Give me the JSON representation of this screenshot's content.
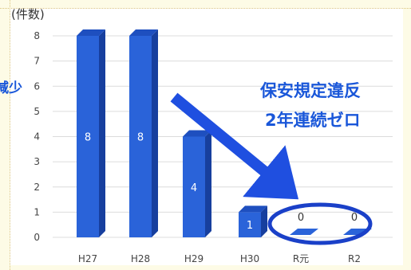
{
  "chart_data": {
    "type": "bar",
    "ylabel": "(件数)",
    "categories": [
      "H27",
      "H28",
      "H29",
      "H30",
      "R元",
      "R2"
    ],
    "values": [
      8,
      8,
      4,
      1,
      0,
      0
    ],
    "ylim": [
      0,
      8
    ],
    "yticks": [
      "0",
      "1",
      "2",
      "3",
      "4",
      "5",
      "6",
      "7",
      "8"
    ],
    "grid": true
  },
  "annotations": {
    "left_cutoff": "減少",
    "callout_line1": "保安規定違反",
    "callout_line2": "2年連続ゼロ"
  },
  "colors": {
    "bar_front": "#2a63d9",
    "bar_side": "#173f9e",
    "bar_top": "#1e4fbf",
    "callout_blue": "#1a57d9",
    "ellipse": "#1a40c8",
    "arrow": "#1f4fe0"
  }
}
